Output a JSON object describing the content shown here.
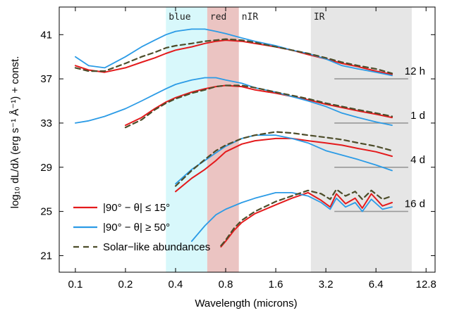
{
  "chart_data": {
    "type": "line",
    "xlabel": "Wavelength (microns)",
    "ylabel": "log₁₀ dL/dλ (erg s⁻¹ Å⁻¹) + const.",
    "xscale": "log2",
    "xlim": [
      0.08,
      14.5
    ],
    "ylim": [
      19.5,
      43.5
    ],
    "x_ticks": [
      {
        "value": 0.1,
        "label": "0.1"
      },
      {
        "value": 0.2,
        "label": "0.2"
      },
      {
        "value": 0.4,
        "label": "0.4"
      },
      {
        "value": 0.8,
        "label": "0.8"
      },
      {
        "value": 1.6,
        "label": "1.6"
      },
      {
        "value": 3.2,
        "label": "3.2"
      },
      {
        "value": 6.4,
        "label": "6.4"
      },
      {
        "value": 12.8,
        "label": "12.8"
      }
    ],
    "y_ticks": [
      {
        "value": 21,
        "label": "21"
      },
      {
        "value": 25,
        "label": "25"
      },
      {
        "value": 29,
        "label": "29"
      },
      {
        "value": 33,
        "label": "33"
      },
      {
        "value": 37,
        "label": "37"
      },
      {
        "value": 41,
        "label": "41"
      }
    ],
    "bands": [
      {
        "label": "blue",
        "range": [
          0.35,
          0.62
        ],
        "color": "#d8f8fb"
      },
      {
        "label": "red",
        "range": [
          0.62,
          0.96
        ],
        "color": "#ebc4c2"
      },
      {
        "label": "nIR",
        "range": [
          0.96,
          0.96
        ],
        "color": "none"
      },
      {
        "label": "IR",
        "range": [
          2.6,
          10.5
        ],
        "color": "#e6e6e6"
      }
    ],
    "epochs": [
      {
        "label": "12 h",
        "baseline": 37.0
      },
      {
        "label": "1 d",
        "baseline": 33.0
      },
      {
        "label": "4 d",
        "baseline": 29.0
      },
      {
        "label": "16 d",
        "baseline": 25.0
      }
    ],
    "legend": {
      "position": "bottom-left",
      "entries": [
        "|90° − θ| ≤ 15°",
        "|90° − θ| ≥ 50°",
        "Solar−like abundances"
      ]
    },
    "colors": {
      "red": "#e41a1c",
      "blue": "#2b9be6",
      "dashed": "#4d4d2a",
      "baseline": "#999999"
    },
    "series": [
      {
        "name": "|90° − θ| ≤ 15°",
        "epoch": "12 h",
        "x": [
          0.1,
          0.12,
          0.15,
          0.2,
          0.25,
          0.3,
          0.35,
          0.4,
          0.5,
          0.6,
          0.7,
          0.8,
          1.0,
          1.2,
          1.6,
          2.0,
          2.5,
          3.2,
          4.0,
          5.0,
          6.4,
          8.0
        ],
        "y": [
          38.2,
          37.8,
          37.6,
          38.0,
          38.5,
          38.9,
          39.3,
          39.6,
          39.9,
          40.2,
          40.4,
          40.5,
          40.4,
          40.2,
          39.9,
          39.6,
          39.2,
          38.8,
          38.4,
          38.1,
          37.7,
          37.4
        ]
      },
      {
        "name": "|90° − θ| ≥ 50°",
        "epoch": "12 h",
        "x": [
          0.1,
          0.12,
          0.15,
          0.2,
          0.25,
          0.3,
          0.35,
          0.4,
          0.5,
          0.6,
          0.7,
          0.8,
          1.0,
          1.2,
          1.6,
          2.0,
          2.5,
          3.2,
          4.0,
          5.0,
          6.4,
          8.0
        ],
        "y": [
          39.0,
          38.2,
          38.0,
          39.0,
          39.9,
          40.5,
          41.0,
          41.3,
          41.5,
          41.5,
          41.3,
          41.1,
          40.7,
          40.4,
          40.0,
          39.6,
          39.3,
          38.8,
          38.2,
          37.9,
          37.6,
          37.3
        ]
      },
      {
        "name": "Solar−like abundances",
        "epoch": "12 h",
        "x": [
          0.1,
          0.12,
          0.15,
          0.2,
          0.25,
          0.3,
          0.35,
          0.4,
          0.5,
          0.6,
          0.7,
          0.8,
          1.0,
          1.2,
          1.6,
          2.0,
          2.5,
          3.2,
          4.0,
          5.0,
          6.4,
          8.0
        ],
        "y": [
          38.0,
          37.7,
          37.7,
          38.4,
          39.0,
          39.4,
          39.8,
          40.0,
          40.2,
          40.4,
          40.5,
          40.6,
          40.5,
          40.3,
          39.9,
          39.6,
          39.3,
          38.9,
          38.5,
          38.2,
          37.9,
          37.5
        ]
      },
      {
        "name": "|90° − θ| ≤ 15°",
        "epoch": "1 d",
        "x": [
          0.2,
          0.25,
          0.3,
          0.35,
          0.4,
          0.5,
          0.6,
          0.7,
          0.8,
          1.0,
          1.2,
          1.6,
          2.0,
          2.5,
          3.2,
          4.0,
          5.0,
          6.4,
          8.0
        ],
        "y": [
          32.8,
          33.5,
          34.3,
          34.9,
          35.3,
          35.8,
          36.1,
          36.3,
          36.4,
          36.3,
          36.0,
          35.7,
          35.4,
          35.1,
          34.7,
          34.4,
          34.1,
          33.8,
          33.5
        ]
      },
      {
        "name": "|90° − θ| ≥ 50°",
        "epoch": "1 d",
        "x": [
          0.1,
          0.12,
          0.15,
          0.2,
          0.25,
          0.3,
          0.35,
          0.4,
          0.5,
          0.6,
          0.7,
          0.8,
          1.0,
          1.2,
          1.6,
          2.0,
          2.5,
          3.2,
          4.0,
          5.0,
          6.4,
          8.0
        ],
        "y": [
          33.0,
          33.2,
          33.6,
          34.3,
          35.0,
          35.6,
          36.1,
          36.5,
          36.9,
          37.1,
          37.1,
          36.9,
          36.6,
          36.2,
          35.8,
          35.4,
          35.0,
          34.5,
          33.9,
          33.5,
          33.1,
          32.8
        ]
      },
      {
        "name": "Solar−like abundances",
        "epoch": "1 d",
        "x": [
          0.2,
          0.25,
          0.3,
          0.35,
          0.4,
          0.5,
          0.6,
          0.7,
          0.8,
          1.0,
          1.2,
          1.6,
          2.0,
          2.5,
          3.2,
          4.0,
          5.0,
          6.4,
          8.0
        ],
        "y": [
          32.6,
          33.3,
          34.2,
          34.8,
          35.2,
          35.7,
          36.0,
          36.3,
          36.4,
          36.4,
          36.2,
          35.8,
          35.5,
          35.2,
          34.8,
          34.5,
          34.2,
          33.9,
          33.6
        ]
      },
      {
        "name": "|90° − θ| ≤ 15°",
        "epoch": "4 d",
        "x": [
          0.4,
          0.5,
          0.6,
          0.7,
          0.8,
          1.0,
          1.2,
          1.6,
          2.0,
          2.5,
          3.2,
          4.0,
          5.0,
          6.4,
          8.0
        ],
        "y": [
          26.8,
          28.0,
          28.8,
          29.6,
          30.4,
          31.1,
          31.4,
          31.6,
          31.6,
          31.4,
          31.2,
          31.0,
          30.7,
          30.4,
          30.0
        ]
      },
      {
        "name": "|90° − θ| ≥ 50°",
        "epoch": "4 d",
        "x": [
          0.4,
          0.5,
          0.6,
          0.7,
          0.8,
          1.0,
          1.2,
          1.6,
          2.0,
          2.5,
          3.2,
          4.0,
          5.0,
          6.4,
          8.0
        ],
        "y": [
          27.5,
          28.8,
          29.6,
          30.3,
          30.9,
          31.6,
          31.9,
          31.9,
          31.6,
          31.2,
          30.5,
          30.1,
          29.7,
          29.2,
          28.7
        ]
      },
      {
        "name": "Solar−like abundances",
        "epoch": "4 d",
        "x": [
          0.4,
          0.5,
          0.6,
          0.7,
          0.8,
          1.0,
          1.2,
          1.6,
          2.0,
          2.5,
          3.2,
          4.0,
          5.0,
          6.4,
          8.0
        ],
        "y": [
          27.3,
          28.7,
          29.7,
          30.5,
          31.0,
          31.6,
          31.9,
          32.2,
          32.1,
          31.9,
          31.7,
          31.5,
          31.2,
          30.9,
          30.5
        ]
      },
      {
        "name": "|90° − θ| ≤ 15°",
        "epoch": "16 d",
        "x": [
          0.75,
          0.8,
          0.9,
          1.0,
          1.2,
          1.6,
          2.0,
          2.5,
          3.0,
          3.4,
          3.7,
          4.2,
          4.8,
          5.3,
          6.0,
          7.0,
          8.0
        ],
        "y": [
          21.8,
          22.3,
          23.3,
          24.0,
          24.8,
          25.6,
          26.2,
          26.7,
          26.0,
          25.4,
          26.6,
          25.7,
          26.2,
          25.3,
          26.6,
          25.5,
          25.8
        ]
      },
      {
        "name": "|90° − θ| ≥ 50°",
        "epoch": "16 d",
        "x": [
          0.5,
          0.6,
          0.7,
          0.8,
          1.0,
          1.2,
          1.6,
          2.0,
          2.5,
          3.0,
          3.4,
          3.7,
          4.2,
          4.8,
          5.3,
          6.0,
          7.0,
          8.0
        ],
        "y": [
          22.3,
          23.7,
          24.7,
          25.2,
          25.8,
          26.2,
          26.7,
          26.7,
          26.4,
          25.8,
          25.2,
          26.2,
          25.4,
          25.8,
          25.0,
          26.1,
          25.2,
          25.4
        ]
      },
      {
        "name": "Solar−like abundances",
        "epoch": "16 d",
        "x": [
          0.75,
          0.8,
          0.9,
          1.0,
          1.2,
          1.6,
          2.0,
          2.5,
          3.0,
          3.4,
          3.7,
          4.2,
          4.8,
          5.3,
          6.0,
          7.0,
          8.0
        ],
        "y": [
          21.9,
          22.4,
          23.5,
          24.2,
          25.0,
          25.9,
          26.4,
          26.9,
          26.6,
          26.1,
          27.0,
          26.4,
          26.8,
          26.1,
          26.9,
          26.1,
          26.4
        ]
      }
    ]
  }
}
